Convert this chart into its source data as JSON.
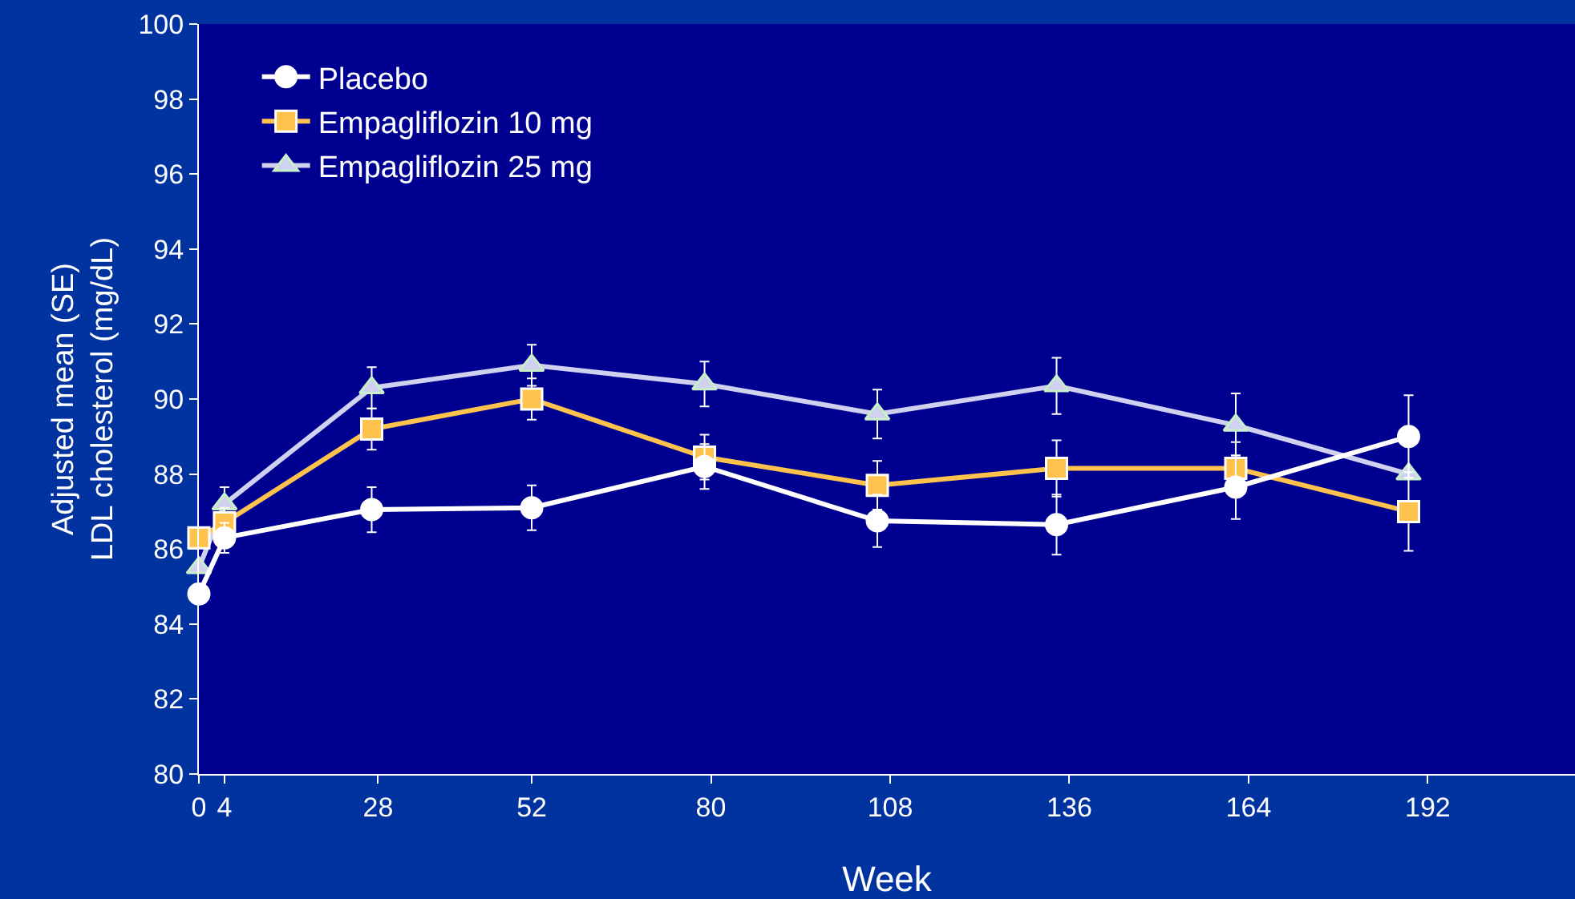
{
  "chart_data": {
    "type": "line",
    "xlabel": "Week",
    "ylabel": "Adjusted mean (SE)\nLDL cholesterol (mg/dL)",
    "x": [
      0,
      4,
      27,
      52,
      79,
      106,
      134,
      162,
      189
    ],
    "xlim": [
      0,
      215
    ],
    "xticks": [
      0,
      4,
      28,
      52,
      80,
      108,
      136,
      164,
      192
    ],
    "ylim": [
      80,
      100
    ],
    "yticks": [
      80,
      82,
      84,
      86,
      88,
      90,
      92,
      94,
      96,
      98,
      100
    ],
    "grid": false,
    "legend": "top left",
    "series": [
      {
        "name": "Placebo",
        "color": "#ffffff",
        "marker": "circle",
        "values": [
          84.8,
          86.3,
          87.05,
          87.1,
          88.2,
          86.75,
          86.65,
          87.65,
          89.0
        ],
        "errors": [
          null,
          0.4,
          0.6,
          0.6,
          0.6,
          0.7,
          0.8,
          0.85,
          1.1
        ]
      },
      {
        "name": "Empagliflozin 10 mg",
        "color": "#ffc34d",
        "marker": "square",
        "values": [
          86.3,
          86.7,
          89.2,
          90.0,
          88.45,
          87.7,
          88.15,
          88.15,
          87.0
        ],
        "errors": [
          null,
          0.4,
          0.55,
          0.55,
          0.6,
          0.65,
          0.75,
          0.7,
          1.05
        ]
      },
      {
        "name": "Empagliflozin 25 mg",
        "color": "#d0d0f0",
        "marker": "triangle",
        "values": [
          85.5,
          87.2,
          90.3,
          90.9,
          90.4,
          89.6,
          90.35,
          89.3,
          88.0
        ],
        "errors": [
          null,
          0.45,
          0.55,
          0.55,
          0.6,
          0.65,
          0.75,
          0.85,
          null
        ]
      }
    ]
  }
}
